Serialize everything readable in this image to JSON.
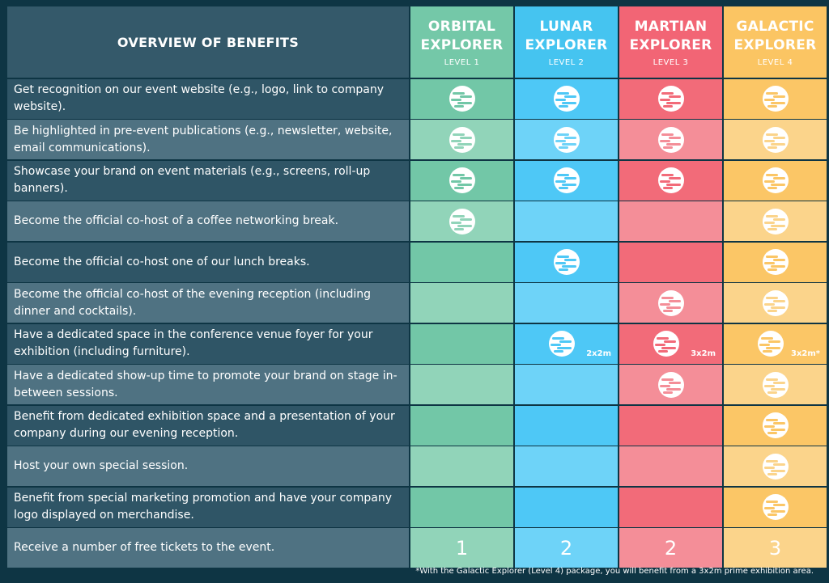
{
  "header": {
    "title": "OVERVIEW OF BENEFITS"
  },
  "levels": [
    {
      "name_line1": "ORBITAL",
      "name_line2": "EXPLORER",
      "level": "LEVEL 1",
      "header_color": "#74c8a8",
      "row_colors": [
        "#72c7a7",
        "#91d4b9"
      ]
    },
    {
      "name_line1": "LUNAR",
      "name_line2": "EXPLORER",
      "level": "LEVEL 2",
      "header_color": "#45c4f0",
      "row_colors": [
        "#4ec8f6",
        "#6ed3f8"
      ]
    },
    {
      "name_line1": "MARTIAN",
      "name_line2": "EXPLORER",
      "level": "LEVEL 3",
      "header_color": "#f26575",
      "row_colors": [
        "#f26b79",
        "#f48e98"
      ]
    },
    {
      "name_line1": "GALACTIC",
      "name_line2": "EXPLORER",
      "level": "LEVEL 4",
      "header_color": "#fbc563",
      "row_colors": [
        "#fbc666",
        "#fbd48b"
      ]
    }
  ],
  "rows": [
    {
      "text": "Get recognition on our event website (e.g., logo, link to company website).",
      "marks": [
        true,
        true,
        true,
        true
      ]
    },
    {
      "text": "Be highlighted in pre-event publications (e.g., newsletter, website, email communications).",
      "marks": [
        true,
        true,
        true,
        true
      ]
    },
    {
      "text": "Showcase your brand on event materials (e.g., screens, roll-up banners).",
      "marks": [
        true,
        true,
        true,
        true
      ]
    },
    {
      "text": "Become the official co-host of a coffee networking break.",
      "marks": [
        true,
        false,
        false,
        true
      ]
    },
    {
      "text": "Become the official co-host one of our lunch breaks.",
      "marks": [
        false,
        true,
        false,
        true
      ]
    },
    {
      "text": "Become the official co-host of the evening reception (including dinner and cocktails).",
      "marks": [
        false,
        false,
        true,
        true
      ]
    },
    {
      "text": "Have a dedicated space in the conference venue foyer for your exhibition (including furniture).",
      "marks": [
        false,
        true,
        true,
        true
      ],
      "notes": [
        "",
        "2x2m",
        "3x2m",
        "3x2m*"
      ]
    },
    {
      "text": "Have a dedicated show-up time to promote your brand on stage in-between sessions.",
      "marks": [
        false,
        false,
        true,
        true
      ]
    },
    {
      "text": "Benefit from dedicated exhibition space and a presentation of your company during our evening reception.",
      "marks": [
        false,
        false,
        false,
        true
      ]
    },
    {
      "text": "Host your own special session.",
      "marks": [
        false,
        false,
        false,
        true
      ]
    },
    {
      "text": "Benefit from special marketing promotion and have your company logo displayed on merchandise.",
      "marks": [
        false,
        false,
        false,
        true
      ]
    },
    {
      "text": "Receive a number of free tickets to the event.",
      "counts": [
        "1",
        "2",
        "2",
        "3"
      ]
    }
  ],
  "icons": {
    "included": "planet-icon"
  },
  "colors": {
    "benefit_dark": "#2f5566",
    "benefit_light": "#4f7282"
  },
  "footnote": "*With the Galactic Explorer (Level 4) package, you will benefit from a 3x2m prime exhibition area."
}
